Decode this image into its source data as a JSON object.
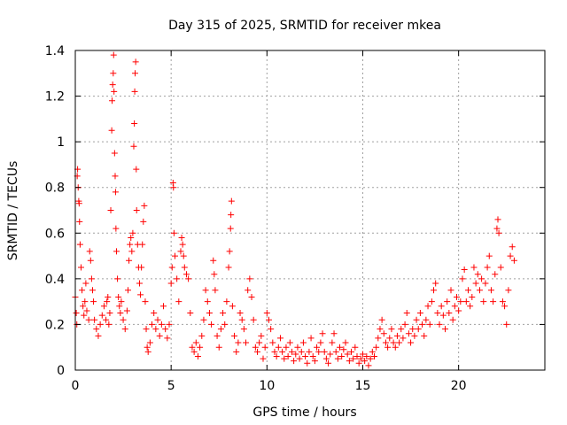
{
  "chart_data": {
    "type": "scatter",
    "title": "Day 315 of 2025, SRMTID for receiver mkea",
    "xlabel": "GPS time / hours",
    "ylabel": "SRMTID / TECUs",
    "xlim": [
      0,
      24.5
    ],
    "ylim": [
      0,
      1.4
    ],
    "xticks": [
      0,
      5,
      10,
      15,
      20
    ],
    "xtick_labels": [
      "0",
      "5",
      "10",
      "15",
      "20"
    ],
    "yticks": [
      0,
      0.2,
      0.4,
      0.6,
      0.8,
      1,
      1.2,
      1.4
    ],
    "ytick_labels": [
      "0",
      "0.2",
      "0.4",
      "0.6",
      "0.8",
      "1",
      "1.2",
      "1.4"
    ],
    "grid": true,
    "marker": "+",
    "color": "#ff0000",
    "series": [
      {
        "name": "SRMTID",
        "points": [
          [
            0.0,
            0.32
          ],
          [
            0.05,
            0.25
          ],
          [
            0.08,
            0.2
          ],
          [
            0.1,
            0.85
          ],
          [
            0.12,
            0.88
          ],
          [
            0.15,
            0.8
          ],
          [
            0.18,
            0.74
          ],
          [
            0.2,
            0.73
          ],
          [
            0.22,
            0.65
          ],
          [
            0.25,
            0.55
          ],
          [
            0.3,
            0.45
          ],
          [
            0.35,
            0.35
          ],
          [
            0.4,
            0.28
          ],
          [
            0.45,
            0.24
          ],
          [
            0.5,
            0.3
          ],
          [
            0.55,
            0.38
          ],
          [
            0.6,
            0.26
          ],
          [
            0.7,
            0.22
          ],
          [
            0.75,
            0.52
          ],
          [
            0.8,
            0.48
          ],
          [
            0.85,
            0.4
          ],
          [
            0.9,
            0.35
          ],
          [
            0.95,
            0.3
          ],
          [
            1.0,
            0.22
          ],
          [
            1.1,
            0.18
          ],
          [
            1.2,
            0.15
          ],
          [
            1.3,
            0.2
          ],
          [
            1.4,
            0.24
          ],
          [
            1.5,
            0.28
          ],
          [
            1.6,
            0.22
          ],
          [
            1.65,
            0.3
          ],
          [
            1.7,
            0.32
          ],
          [
            1.75,
            0.2
          ],
          [
            1.8,
            0.25
          ],
          [
            1.85,
            0.7
          ],
          [
            1.9,
            1.05
          ],
          [
            1.92,
            1.18
          ],
          [
            1.95,
            1.25
          ],
          [
            1.98,
            1.3
          ],
          [
            2.0,
            1.38
          ],
          [
            2.02,
            1.22
          ],
          [
            2.05,
            0.95
          ],
          [
            2.08,
            0.85
          ],
          [
            2.1,
            0.78
          ],
          [
            2.12,
            0.62
          ],
          [
            2.15,
            0.52
          ],
          [
            2.2,
            0.4
          ],
          [
            2.25,
            0.32
          ],
          [
            2.3,
            0.28
          ],
          [
            2.35,
            0.25
          ],
          [
            2.4,
            0.3
          ],
          [
            2.5,
            0.22
          ],
          [
            2.6,
            0.18
          ],
          [
            2.7,
            0.26
          ],
          [
            2.75,
            0.35
          ],
          [
            2.8,
            0.48
          ],
          [
            2.85,
            0.55
          ],
          [
            2.9,
            0.58
          ],
          [
            2.95,
            0.52
          ],
          [
            3.0,
            0.6
          ],
          [
            3.05,
            0.98
          ],
          [
            3.08,
            1.08
          ],
          [
            3.1,
            1.22
          ],
          [
            3.12,
            1.3
          ],
          [
            3.15,
            1.35
          ],
          [
            3.18,
            0.88
          ],
          [
            3.2,
            0.7
          ],
          [
            3.25,
            0.55
          ],
          [
            3.3,
            0.45
          ],
          [
            3.35,
            0.38
          ],
          [
            3.4,
            0.33
          ],
          [
            3.45,
            0.45
          ],
          [
            3.5,
            0.55
          ],
          [
            3.55,
            0.65
          ],
          [
            3.6,
            0.72
          ],
          [
            3.65,
            0.3
          ],
          [
            3.7,
            0.18
          ],
          [
            3.75,
            0.1
          ],
          [
            3.8,
            0.08
          ],
          [
            3.9,
            0.12
          ],
          [
            4.0,
            0.2
          ],
          [
            4.1,
            0.25
          ],
          [
            4.2,
            0.18
          ],
          [
            4.3,
            0.22
          ],
          [
            4.4,
            0.15
          ],
          [
            4.5,
            0.2
          ],
          [
            4.6,
            0.28
          ],
          [
            4.7,
            0.18
          ],
          [
            4.8,
            0.14
          ],
          [
            4.9,
            0.2
          ],
          [
            5.0,
            0.38
          ],
          [
            5.05,
            0.45
          ],
          [
            5.1,
            0.82
          ],
          [
            5.12,
            0.8
          ],
          [
            5.15,
            0.6
          ],
          [
            5.2,
            0.5
          ],
          [
            5.3,
            0.4
          ],
          [
            5.4,
            0.3
          ],
          [
            5.5,
            0.52
          ],
          [
            5.55,
            0.58
          ],
          [
            5.6,
            0.55
          ],
          [
            5.65,
            0.5
          ],
          [
            5.7,
            0.45
          ],
          [
            5.8,
            0.42
          ],
          [
            5.9,
            0.4
          ],
          [
            6.0,
            0.25
          ],
          [
            6.1,
            0.1
          ],
          [
            6.2,
            0.08
          ],
          [
            6.3,
            0.12
          ],
          [
            6.4,
            0.06
          ],
          [
            6.5,
            0.1
          ],
          [
            6.6,
            0.15
          ],
          [
            6.7,
            0.22
          ],
          [
            6.8,
            0.35
          ],
          [
            6.9,
            0.3
          ],
          [
            7.0,
            0.25
          ],
          [
            7.1,
            0.2
          ],
          [
            7.2,
            0.48
          ],
          [
            7.25,
            0.42
          ],
          [
            7.3,
            0.35
          ],
          [
            7.4,
            0.15
          ],
          [
            7.5,
            0.1
          ],
          [
            7.6,
            0.18
          ],
          [
            7.7,
            0.25
          ],
          [
            7.8,
            0.2
          ],
          [
            7.9,
            0.3
          ],
          [
            8.0,
            0.45
          ],
          [
            8.05,
            0.52
          ],
          [
            8.1,
            0.62
          ],
          [
            8.12,
            0.68
          ],
          [
            8.15,
            0.74
          ],
          [
            8.2,
            0.28
          ],
          [
            8.3,
            0.15
          ],
          [
            8.4,
            0.08
          ],
          [
            8.5,
            0.12
          ],
          [
            8.6,
            0.25
          ],
          [
            8.7,
            0.22
          ],
          [
            8.8,
            0.18
          ],
          [
            8.9,
            0.12
          ],
          [
            9.0,
            0.35
          ],
          [
            9.1,
            0.4
          ],
          [
            9.2,
            0.32
          ],
          [
            9.3,
            0.22
          ],
          [
            9.4,
            0.1
          ],
          [
            9.5,
            0.08
          ],
          [
            9.6,
            0.12
          ],
          [
            9.7,
            0.15
          ],
          [
            9.8,
            0.05
          ],
          [
            9.9,
            0.1
          ],
          [
            10.0,
            0.25
          ],
          [
            10.1,
            0.22
          ],
          [
            10.2,
            0.18
          ],
          [
            10.3,
            0.12
          ],
          [
            10.4,
            0.08
          ],
          [
            10.5,
            0.06
          ],
          [
            10.6,
            0.1
          ],
          [
            10.7,
            0.14
          ],
          [
            10.8,
            0.08
          ],
          [
            10.9,
            0.05
          ],
          [
            11.0,
            0.1
          ],
          [
            11.1,
            0.06
          ],
          [
            11.2,
            0.12
          ],
          [
            11.3,
            0.08
          ],
          [
            11.4,
            0.04
          ],
          [
            11.5,
            0.07
          ],
          [
            11.6,
            0.1
          ],
          [
            11.7,
            0.05
          ],
          [
            11.8,
            0.08
          ],
          [
            11.9,
            0.12
          ],
          [
            12.0,
            0.06
          ],
          [
            12.1,
            0.03
          ],
          [
            12.2,
            0.08
          ],
          [
            12.3,
            0.14
          ],
          [
            12.4,
            0.06
          ],
          [
            12.5,
            0.04
          ],
          [
            12.6,
            0.1
          ],
          [
            12.7,
            0.08
          ],
          [
            12.8,
            0.12
          ],
          [
            12.9,
            0.16
          ],
          [
            13.0,
            0.08
          ],
          [
            13.1,
            0.05
          ],
          [
            13.2,
            0.03
          ],
          [
            13.3,
            0.07
          ],
          [
            13.4,
            0.12
          ],
          [
            13.5,
            0.16
          ],
          [
            13.6,
            0.08
          ],
          [
            13.7,
            0.05
          ],
          [
            13.8,
            0.1
          ],
          [
            13.9,
            0.06
          ],
          [
            14.0,
            0.09
          ],
          [
            14.1,
            0.12
          ],
          [
            14.2,
            0.07
          ],
          [
            14.3,
            0.04
          ],
          [
            14.4,
            0.08
          ],
          [
            14.5,
            0.05
          ],
          [
            14.6,
            0.1
          ],
          [
            14.7,
            0.06
          ],
          [
            14.8,
            0.03
          ],
          [
            14.9,
            0.05
          ],
          [
            15.0,
            0.07
          ],
          [
            15.1,
            0.04
          ],
          [
            15.2,
            0.06
          ],
          [
            15.3,
            0.02
          ],
          [
            15.4,
            0.05
          ],
          [
            15.5,
            0.08
          ],
          [
            15.6,
            0.06
          ],
          [
            15.7,
            0.1
          ],
          [
            15.8,
            0.14
          ],
          [
            15.9,
            0.18
          ],
          [
            16.0,
            0.22
          ],
          [
            16.1,
            0.16
          ],
          [
            16.2,
            0.12
          ],
          [
            16.3,
            0.1
          ],
          [
            16.4,
            0.14
          ],
          [
            16.5,
            0.18
          ],
          [
            16.6,
            0.12
          ],
          [
            16.7,
            0.1
          ],
          [
            16.8,
            0.15
          ],
          [
            16.9,
            0.12
          ],
          [
            17.0,
            0.18
          ],
          [
            17.1,
            0.14
          ],
          [
            17.2,
            0.2
          ],
          [
            17.3,
            0.25
          ],
          [
            17.4,
            0.16
          ],
          [
            17.5,
            0.12
          ],
          [
            17.6,
            0.18
          ],
          [
            17.7,
            0.15
          ],
          [
            17.8,
            0.22
          ],
          [
            17.9,
            0.18
          ],
          [
            18.0,
            0.25
          ],
          [
            18.1,
            0.2
          ],
          [
            18.2,
            0.15
          ],
          [
            18.3,
            0.22
          ],
          [
            18.4,
            0.28
          ],
          [
            18.5,
            0.2
          ],
          [
            18.6,
            0.3
          ],
          [
            18.7,
            0.35
          ],
          [
            18.8,
            0.38
          ],
          [
            18.9,
            0.25
          ],
          [
            19.0,
            0.2
          ],
          [
            19.1,
            0.28
          ],
          [
            19.2,
            0.24
          ],
          [
            19.3,
            0.18
          ],
          [
            19.4,
            0.3
          ],
          [
            19.5,
            0.25
          ],
          [
            19.6,
            0.35
          ],
          [
            19.7,
            0.22
          ],
          [
            19.8,
            0.28
          ],
          [
            19.9,
            0.32
          ],
          [
            20.0,
            0.26
          ],
          [
            20.1,
            0.3
          ],
          [
            20.2,
            0.4
          ],
          [
            20.3,
            0.44
          ],
          [
            20.4,
            0.3
          ],
          [
            20.5,
            0.35
          ],
          [
            20.6,
            0.28
          ],
          [
            20.7,
            0.32
          ],
          [
            20.8,
            0.45
          ],
          [
            20.9,
            0.38
          ],
          [
            21.0,
            0.42
          ],
          [
            21.1,
            0.35
          ],
          [
            21.2,
            0.4
          ],
          [
            21.3,
            0.3
          ],
          [
            21.4,
            0.38
          ],
          [
            21.5,
            0.45
          ],
          [
            21.6,
            0.5
          ],
          [
            21.7,
            0.35
          ],
          [
            21.8,
            0.3
          ],
          [
            21.9,
            0.42
          ],
          [
            22.0,
            0.62
          ],
          [
            22.05,
            0.66
          ],
          [
            22.1,
            0.6
          ],
          [
            22.2,
            0.45
          ],
          [
            22.3,
            0.3
          ],
          [
            22.4,
            0.28
          ],
          [
            22.5,
            0.2
          ],
          [
            22.6,
            0.35
          ],
          [
            22.7,
            0.5
          ],
          [
            22.8,
            0.54
          ],
          [
            22.9,
            0.48
          ]
        ]
      }
    ]
  }
}
